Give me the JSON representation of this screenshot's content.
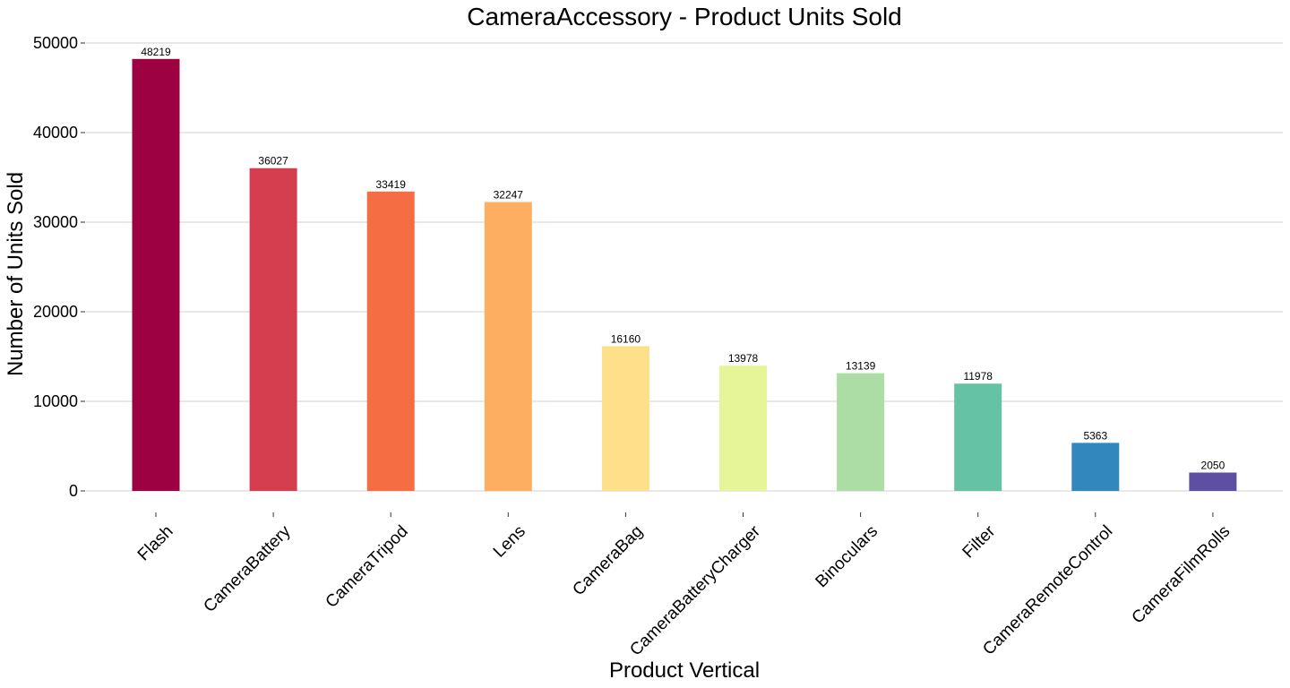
{
  "chart_data": {
    "type": "bar",
    "title": "CameraAccessory - Product Units Sold",
    "xlabel": "Product Vertical",
    "ylabel": "Number of Units Sold",
    "categories": [
      "Flash",
      "CameraBattery",
      "CameraTripod",
      "Lens",
      "CameraBag",
      "CameraBatteryCharger",
      "Binoculars",
      "Filter",
      "CameraRemoteControl",
      "CameraFilmRolls"
    ],
    "values": [
      48219,
      36027,
      33419,
      32247,
      16160,
      13978,
      13139,
      11978,
      5363,
      2050
    ],
    "value_labels": [
      "48219",
      "36027",
      "33419",
      "32247",
      "16160",
      "13978",
      "13139",
      "11978",
      "5363",
      "2050"
    ],
    "colors": [
      "#9e0142",
      "#d53e4f",
      "#f46d43",
      "#fdae61",
      "#fee08b",
      "#e6f598",
      "#abdda4",
      "#66c2a5",
      "#3288bd",
      "#5e4fa2"
    ],
    "ylim": [
      0,
      50000
    ],
    "yticks": [
      0,
      10000,
      20000,
      30000,
      40000,
      50000
    ],
    "ytick_labels": [
      "0",
      "10000",
      "20000",
      "30000",
      "40000",
      "50000"
    ],
    "grid": true,
    "legend": "none"
  }
}
